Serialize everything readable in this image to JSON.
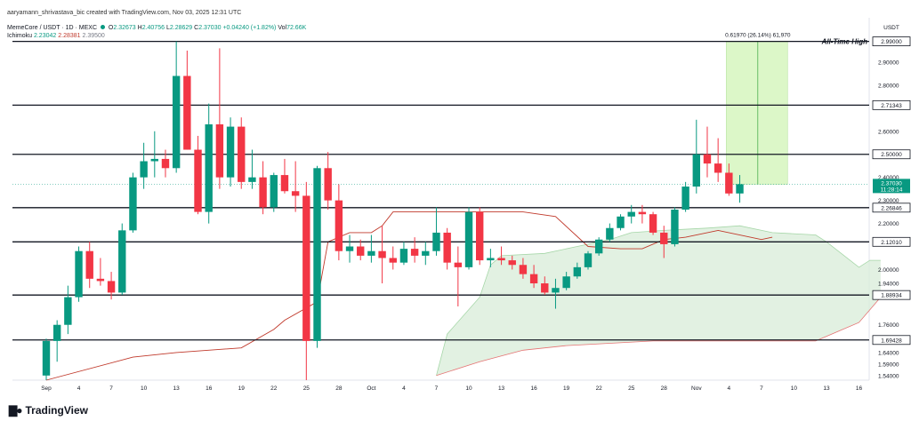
{
  "header": {
    "creator": "aaryamann_shrivastava_bic created with TradingView.com, Nov 03, 2025 12:31 UTC",
    "symbol": "MemeCore / USDT · 1D · MEXC",
    "ohlc": {
      "o_label": "O",
      "o": "2.32673",
      "h_label": "H",
      "h": "2.40756",
      "l_label": "L",
      "l": "2.28629",
      "c_label": "C",
      "c": "2.37030",
      "change": "+0.04240 (+1.82%)",
      "vol_label": "Vol",
      "vol": "72.66K"
    },
    "indicator": {
      "name": "Ichimoku",
      "v1": "2.23042",
      "v2": "2.28381",
      "v3": "2.39500"
    }
  },
  "currency": "USDT",
  "colors": {
    "up": "#089981",
    "down": "#f23645",
    "level": "#131722",
    "cloud": "#d8ecd8",
    "kijun": "#c0392b",
    "range_box": "#dcf7c8"
  },
  "annotation": {
    "ath_label": "All-Time High",
    "range_text": "0.61970 (26.14%) 61,970"
  },
  "footer": {
    "brand": "TradingView"
  },
  "chart_data": {
    "type": "candlestick",
    "ylim": [
      1.52,
      3.0
    ],
    "yticks": [
      "2.90000",
      "2.80000",
      "2.60000",
      "2.40000",
      "2.30000",
      "2.20000",
      "2.00000",
      "1.94000",
      "1.76000",
      "1.64000",
      "1.59000",
      "1.54000"
    ],
    "ytick_values": [
      2.9,
      2.8,
      2.6,
      2.4,
      2.3,
      2.2,
      2.0,
      1.94,
      1.76,
      1.64,
      1.59,
      1.54
    ],
    "xticks": [
      "Sep",
      "4",
      "7",
      "10",
      "13",
      "16",
      "19",
      "22",
      "25",
      "28",
      "Oct",
      "4",
      "7",
      "10",
      "13",
      "16",
      "19",
      "22",
      "25",
      "28",
      "Nov",
      "4",
      "7",
      "10",
      "13",
      "16"
    ],
    "xtick_index": [
      0,
      3,
      6,
      9,
      12,
      15,
      18,
      21,
      24,
      27,
      30,
      33,
      36,
      39,
      42,
      45,
      48,
      51,
      54,
      57,
      60,
      63,
      66,
      69,
      72,
      75
    ],
    "levels": [
      {
        "label": "2.99000",
        "value": 2.99
      },
      {
        "label": "2.71343",
        "value": 2.71343
      },
      {
        "label": "2.50000",
        "value": 2.5
      },
      {
        "label": "2.26846",
        "value": 2.26846
      },
      {
        "label": "2.12010",
        "value": 2.1201
      },
      {
        "label": "1.88934",
        "value": 1.88934
      },
      {
        "label": "1.69428",
        "value": 1.69428
      }
    ],
    "current_price": {
      "label": "2.37030",
      "sub": "11:28:14",
      "value": 2.3703
    },
    "candles": [
      {
        "o": 1.54,
        "h": 1.7,
        "l": 1.52,
        "c": 1.69
      },
      {
        "o": 1.69,
        "h": 1.78,
        "l": 1.6,
        "c": 1.76
      },
      {
        "o": 1.76,
        "h": 1.93,
        "l": 1.72,
        "c": 1.88
      },
      {
        "o": 1.88,
        "h": 2.1,
        "l": 1.86,
        "c": 2.08
      },
      {
        "o": 2.08,
        "h": 2.12,
        "l": 1.92,
        "c": 1.96
      },
      {
        "o": 1.96,
        "h": 2.05,
        "l": 1.93,
        "c": 1.95
      },
      {
        "o": 1.95,
        "h": 1.99,
        "l": 1.87,
        "c": 1.9
      },
      {
        "o": 1.9,
        "h": 2.2,
        "l": 1.89,
        "c": 2.17
      },
      {
        "o": 2.17,
        "h": 2.42,
        "l": 2.16,
        "c": 2.4
      },
      {
        "o": 2.4,
        "h": 2.55,
        "l": 2.35,
        "c": 2.47
      },
      {
        "o": 2.47,
        "h": 2.6,
        "l": 2.4,
        "c": 2.48
      },
      {
        "o": 2.48,
        "h": 2.52,
        "l": 2.4,
        "c": 2.44
      },
      {
        "o": 2.44,
        "h": 2.99,
        "l": 2.42,
        "c": 2.84
      },
      {
        "o": 2.84,
        "h": 2.95,
        "l": 2.52,
        "c": 2.52
      },
      {
        "o": 2.52,
        "h": 2.58,
        "l": 2.24,
        "c": 2.25
      },
      {
        "o": 2.25,
        "h": 2.72,
        "l": 2.2,
        "c": 2.63
      },
      {
        "o": 2.63,
        "h": 2.96,
        "l": 2.35,
        "c": 2.4
      },
      {
        "o": 2.4,
        "h": 2.66,
        "l": 2.36,
        "c": 2.62
      },
      {
        "o": 2.62,
        "h": 2.66,
        "l": 2.35,
        "c": 2.38
      },
      {
        "o": 2.38,
        "h": 2.52,
        "l": 2.35,
        "c": 2.4
      },
      {
        "o": 2.4,
        "h": 2.47,
        "l": 2.24,
        "c": 2.27
      },
      {
        "o": 2.27,
        "h": 2.42,
        "l": 2.25,
        "c": 2.41
      },
      {
        "o": 2.41,
        "h": 2.48,
        "l": 2.33,
        "c": 2.34
      },
      {
        "o": 2.34,
        "h": 2.47,
        "l": 2.25,
        "c": 2.32
      },
      {
        "o": 2.32,
        "h": 2.38,
        "l": 1.52,
        "c": 1.69
      },
      {
        "o": 1.69,
        "h": 2.45,
        "l": 1.66,
        "c": 2.44
      },
      {
        "o": 2.44,
        "h": 2.51,
        "l": 2.26,
        "c": 2.3
      },
      {
        "o": 2.3,
        "h": 2.37,
        "l": 2.04,
        "c": 2.08
      },
      {
        "o": 2.08,
        "h": 2.15,
        "l": 2.03,
        "c": 2.1
      },
      {
        "o": 2.1,
        "h": 2.13,
        "l": 2.04,
        "c": 2.06
      },
      {
        "o": 2.06,
        "h": 2.15,
        "l": 2.03,
        "c": 2.08
      },
      {
        "o": 2.08,
        "h": 2.19,
        "l": 1.94,
        "c": 2.05
      },
      {
        "o": 2.05,
        "h": 2.1,
        "l": 2.0,
        "c": 2.03
      },
      {
        "o": 2.03,
        "h": 2.12,
        "l": 2.02,
        "c": 2.09
      },
      {
        "o": 2.09,
        "h": 2.14,
        "l": 2.03,
        "c": 2.06
      },
      {
        "o": 2.06,
        "h": 2.12,
        "l": 2.02,
        "c": 2.08
      },
      {
        "o": 2.08,
        "h": 2.27,
        "l": 2.06,
        "c": 2.16
      },
      {
        "o": 2.16,
        "h": 2.18,
        "l": 2.0,
        "c": 2.03
      },
      {
        "o": 2.03,
        "h": 2.1,
        "l": 1.84,
        "c": 2.01
      },
      {
        "o": 2.01,
        "h": 2.27,
        "l": 2.0,
        "c": 2.25
      },
      {
        "o": 2.25,
        "h": 2.27,
        "l": 2.02,
        "c": 2.04
      },
      {
        "o": 2.04,
        "h": 2.09,
        "l": 2.01,
        "c": 2.05
      },
      {
        "o": 2.05,
        "h": 2.1,
        "l": 2.02,
        "c": 2.04
      },
      {
        "o": 2.04,
        "h": 2.06,
        "l": 2.0,
        "c": 2.02
      },
      {
        "o": 2.02,
        "h": 2.05,
        "l": 1.96,
        "c": 1.98
      },
      {
        "o": 1.98,
        "h": 2.02,
        "l": 1.92,
        "c": 1.94
      },
      {
        "o": 1.94,
        "h": 1.97,
        "l": 1.89,
        "c": 1.9
      },
      {
        "o": 1.9,
        "h": 1.96,
        "l": 1.83,
        "c": 1.92
      },
      {
        "o": 1.92,
        "h": 1.99,
        "l": 1.91,
        "c": 1.97
      },
      {
        "o": 1.97,
        "h": 2.03,
        "l": 1.96,
        "c": 2.01
      },
      {
        "o": 2.01,
        "h": 2.08,
        "l": 2.0,
        "c": 2.07
      },
      {
        "o": 2.07,
        "h": 2.14,
        "l": 2.06,
        "c": 2.13
      },
      {
        "o": 2.13,
        "h": 2.2,
        "l": 2.12,
        "c": 2.18
      },
      {
        "o": 2.18,
        "h": 2.24,
        "l": 2.17,
        "c": 2.23
      },
      {
        "o": 2.23,
        "h": 2.28,
        "l": 2.2,
        "c": 2.25
      },
      {
        "o": 2.25,
        "h": 2.28,
        "l": 2.2,
        "c": 2.24
      },
      {
        "o": 2.24,
        "h": 2.25,
        "l": 2.15,
        "c": 2.16
      },
      {
        "o": 2.16,
        "h": 2.19,
        "l": 2.05,
        "c": 2.11
      },
      {
        "o": 2.11,
        "h": 2.27,
        "l": 2.1,
        "c": 2.26
      },
      {
        "o": 2.26,
        "h": 2.38,
        "l": 2.25,
        "c": 2.36
      },
      {
        "o": 2.36,
        "h": 2.65,
        "l": 2.33,
        "c": 2.5
      },
      {
        "o": 2.5,
        "h": 2.62,
        "l": 2.4,
        "c": 2.46
      },
      {
        "o": 2.46,
        "h": 2.57,
        "l": 2.38,
        "c": 2.42
      },
      {
        "o": 2.42,
        "h": 2.46,
        "l": 2.32,
        "c": 2.33
      },
      {
        "o": 2.33,
        "h": 2.41,
        "l": 2.29,
        "c": 2.37
      }
    ],
    "kijun": [
      [
        0,
        1.52
      ],
      [
        8,
        1.62
      ],
      [
        12,
        1.64
      ],
      [
        18,
        1.66
      ],
      [
        21,
        1.74
      ],
      [
        22,
        1.78
      ],
      [
        25,
        1.86
      ],
      [
        26,
        2.12
      ],
      [
        28,
        2.16
      ],
      [
        30,
        2.16
      ],
      [
        31,
        2.19
      ],
      [
        32,
        2.25
      ],
      [
        44,
        2.25
      ],
      [
        47,
        2.23
      ],
      [
        50,
        2.1
      ],
      [
        53,
        2.09
      ],
      [
        55,
        2.09
      ],
      [
        57,
        2.13
      ],
      [
        59,
        2.14
      ],
      [
        62,
        2.17
      ],
      [
        66,
        2.13
      ],
      [
        67,
        2.14
      ]
    ],
    "cloud_top": [
      [
        36,
        1.54
      ],
      [
        37,
        1.72
      ],
      [
        40,
        1.88
      ],
      [
        41,
        2.02
      ],
      [
        42,
        2.06
      ],
      [
        46,
        2.07
      ],
      [
        49,
        2.1
      ],
      [
        52,
        2.13
      ],
      [
        54,
        2.16
      ],
      [
        57,
        2.17
      ],
      [
        61,
        2.18
      ],
      [
        64,
        2.19
      ],
      [
        67,
        2.16
      ],
      [
        71,
        2.15
      ],
      [
        72,
        2.12
      ],
      [
        75,
        2.01
      ],
      [
        76,
        2.04
      ],
      [
        77,
        2.04
      ]
    ],
    "cloud_bottom": [
      [
        36,
        1.54
      ],
      [
        40,
        1.6
      ],
      [
        44,
        1.65
      ],
      [
        48,
        1.67
      ],
      [
        52,
        1.68
      ],
      [
        56,
        1.69
      ],
      [
        64,
        1.69
      ],
      [
        69,
        1.69
      ],
      [
        71,
        1.69
      ],
      [
        73,
        1.73
      ],
      [
        75,
        1.77
      ],
      [
        77,
        1.88
      ]
    ],
    "range_box": {
      "x0": 63,
      "x1": 68,
      "y0": 2.37,
      "y1": 2.99
    }
  }
}
